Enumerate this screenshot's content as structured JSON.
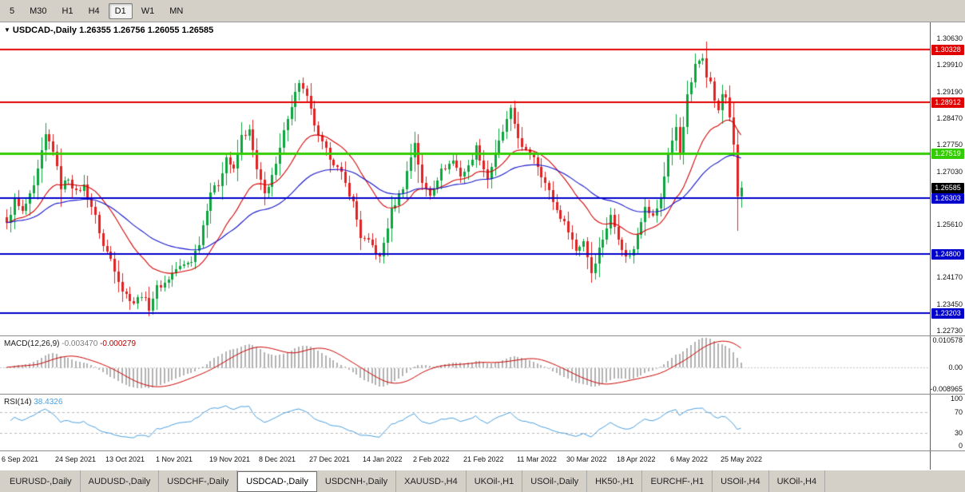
{
  "toolbar": {
    "timeframes": [
      {
        "label": "5",
        "active": false
      },
      {
        "label": "M30",
        "active": false
      },
      {
        "label": "H1",
        "active": false
      },
      {
        "label": "H4",
        "active": false
      },
      {
        "label": "D1",
        "active": true
      },
      {
        "label": "W1",
        "active": false
      },
      {
        "label": "MN",
        "active": false
      }
    ]
  },
  "chart": {
    "symbol": "USDCAD-,Daily",
    "ohlc": "1.26355 1.26756 1.26055 1.26585"
  },
  "chart_data": {
    "type": "candlestick",
    "symbol": "USDCAD",
    "timeframe": "Daily",
    "bars": 192,
    "price_scale": {
      "max": 1.3106,
      "min": 1.226
    },
    "y_ticks": [
      1.3063,
      1.2991,
      1.2919,
      1.2847,
      1.2775,
      1.2703,
      1.2561,
      1.2417,
      1.2345,
      1.2273
    ],
    "price_labels": [
      {
        "value": 1.30328,
        "text": "1.30328",
        "bg": "#e00000"
      },
      {
        "value": 1.28912,
        "text": "1.28912",
        "bg": "#e00000"
      },
      {
        "value": 1.27519,
        "text": "1.27519",
        "bg": "#33cc00"
      },
      {
        "value": 1.26585,
        "text": "1.26585",
        "bg": "#000000"
      },
      {
        "value": 1.26303,
        "text": "1.26303",
        "bg": "#0000cc"
      },
      {
        "value": 1.248,
        "text": "1.24800",
        "bg": "#0000cc"
      },
      {
        "value": 1.23203,
        "text": "1.23203",
        "bg": "#0000cc"
      }
    ],
    "hlines": [
      {
        "price": 1.30328,
        "color": "#e00000",
        "width": 2
      },
      {
        "price": 1.28912,
        "color": "#e00000",
        "width": 2
      },
      {
        "price": 1.27519,
        "color": "#33cc00",
        "width": 3
      },
      {
        "price": 1.26303,
        "color": "#0000cc",
        "width": 2
      },
      {
        "price": 1.248,
        "color": "#0000cc",
        "width": 2
      },
      {
        "price": 1.23203,
        "color": "#0000cc",
        "width": 2
      }
    ],
    "candle_up": "#0da53f",
    "candle_down": "#e02222",
    "ma": [
      {
        "period": 20,
        "color": "#d40000"
      },
      {
        "period": 50,
        "color": "#1414cc"
      }
    ],
    "close_anchors": [
      [
        0,
        1.256
      ],
      [
        2,
        1.2625
      ],
      [
        4,
        1.2592
      ],
      [
        7,
        1.266
      ],
      [
        10,
        1.28
      ],
      [
        12,
        1.2762
      ],
      [
        14,
        1.266
      ],
      [
        16,
        1.2685
      ],
      [
        18,
        1.2645
      ],
      [
        20,
        1.2665
      ],
      [
        23,
        1.258
      ],
      [
        25,
        1.2502
      ],
      [
        27,
        1.2468
      ],
      [
        30,
        1.2382
      ],
      [
        33,
        1.2348
      ],
      [
        35,
        1.2372
      ],
      [
        37,
        1.2334
      ],
      [
        39,
        1.239
      ],
      [
        41,
        1.2402
      ],
      [
        44,
        1.244
      ],
      [
        46,
        1.245
      ],
      [
        48,
        1.2464
      ],
      [
        50,
        1.2512
      ],
      [
        53,
        1.265
      ],
      [
        55,
        1.2668
      ],
      [
        57,
        1.2742
      ],
      [
        59,
        1.2706
      ],
      [
        61,
        1.2798
      ],
      [
        63,
        1.2812
      ],
      [
        65,
        1.2706
      ],
      [
        67,
        1.2642
      ],
      [
        70,
        1.2718
      ],
      [
        73,
        1.2852
      ],
      [
        76,
        1.2945
      ],
      [
        78,
        1.2902
      ],
      [
        81,
        1.2795
      ],
      [
        84,
        1.2742
      ],
      [
        87,
        1.2695
      ],
      [
        90,
        1.2618
      ],
      [
        92,
        1.2528
      ],
      [
        95,
        1.2502
      ],
      [
        97,
        1.2468
      ],
      [
        100,
        1.2596
      ],
      [
        103,
        1.2662
      ],
      [
        106,
        1.2782
      ],
      [
        108,
        1.2668
      ],
      [
        110,
        1.264
      ],
      [
        113,
        1.2706
      ],
      [
        116,
        1.2732
      ],
      [
        118,
        1.2694
      ],
      [
        120,
        1.2716
      ],
      [
        122,
        1.2768
      ],
      [
        125,
        1.2684
      ],
      [
        128,
        1.2782
      ],
      [
        131,
        1.2868
      ],
      [
        134,
        1.2764
      ],
      [
        137,
        1.2744
      ],
      [
        140,
        1.2672
      ],
      [
        143,
        1.2598
      ],
      [
        146,
        1.2546
      ],
      [
        148,
        1.249
      ],
      [
        150,
        1.2516
      ],
      [
        152,
        1.243
      ],
      [
        154,
        1.2494
      ],
      [
        157,
        1.2582
      ],
      [
        159,
        1.2526
      ],
      [
        161,
        1.247
      ],
      [
        163,
        1.2492
      ],
      [
        166,
        1.2614
      ],
      [
        168,
        1.258
      ],
      [
        170,
        1.263
      ],
      [
        172,
        1.2752
      ],
      [
        174,
        1.282
      ],
      [
        175,
        1.2754
      ],
      [
        177,
        1.2906
      ],
      [
        179,
        1.2988
      ],
      [
        181,
        1.3016
      ],
      [
        182,
        1.2966
      ],
      [
        183,
        1.2942
      ],
      [
        184,
        1.2896
      ],
      [
        185,
        1.2864
      ],
      [
        186,
        1.2912
      ],
      [
        187,
        1.2904
      ],
      [
        188,
        1.2852
      ],
      [
        189,
        1.277
      ],
      [
        190,
        1.26355
      ],
      [
        191,
        1.26585
      ]
    ],
    "last_candle": {
      "o": 1.26355,
      "h": 1.26756,
      "l": 1.26055,
      "c": 1.26585
    },
    "x_labels": [
      {
        "bar": 0,
        "text": "6 Sep 2021"
      },
      {
        "bar": 14,
        "text": "24 Sep 2021"
      },
      {
        "bar": 27,
        "text": "13 Oct 2021"
      },
      {
        "bar": 40,
        "text": "1 Nov 2021"
      },
      {
        "bar": 54,
        "text": "19 Nov 2021"
      },
      {
        "bar": 67,
        "text": "8 Dec 2021"
      },
      {
        "bar": 80,
        "text": "27 Dec 2021"
      },
      {
        "bar": 94,
        "text": "14 Jan 2022"
      },
      {
        "bar": 107,
        "text": "2 Feb 2022"
      },
      {
        "bar": 120,
        "text": "21 Feb 2022"
      },
      {
        "bar": 134,
        "text": "11 Mar 2022"
      },
      {
        "bar": 147,
        "text": "30 Mar 2022"
      },
      {
        "bar": 160,
        "text": "18 Apr 2022"
      },
      {
        "bar": 174,
        "text": "6 May 2022"
      },
      {
        "bar": 187,
        "text": "25 May 2022"
      }
    ],
    "macd": {
      "label": "MACD(12,26,9)",
      "value_main": "-0.003470",
      "value_signal": "-0.000279",
      "fast": 12,
      "slow": 26,
      "signal": 9,
      "scale_max": 0.0112,
      "scale_min": -0.0096,
      "axis": [
        {
          "v": 0.010578,
          "text": "0.010578"
        },
        {
          "v": 0,
          "text": "0.00"
        },
        {
          "v": -0.008965,
          "text": "-0.008965"
        }
      ],
      "hist_color": "#b3b3b3",
      "signal_color": "#cc0000"
    },
    "rsi": {
      "label": "RSI(14)",
      "value": "38.4326",
      "period": 14,
      "levels": [
        70,
        30
      ],
      "axis": [
        {
          "v": 100,
          "text": "100"
        },
        {
          "v": 70,
          "text": "70"
        },
        {
          "v": 30,
          "text": "30"
        },
        {
          "v": 0,
          "text": "0"
        }
      ],
      "color": "#4a9ede",
      "level_color": "#b8b8b8"
    }
  },
  "tabs": [
    {
      "label": "EURUSD-,Daily",
      "active": false
    },
    {
      "label": "AUDUSD-,Daily",
      "active": false
    },
    {
      "label": "USDCHF-,Daily",
      "active": false
    },
    {
      "label": "USDCAD-,Daily",
      "active": true
    },
    {
      "label": "USDCNH-,Daily",
      "active": false
    },
    {
      "label": "XAUUSD-,H4",
      "active": false
    },
    {
      "label": "UKOil-,H1",
      "active": false
    },
    {
      "label": "USOil-,Daily",
      "active": false
    },
    {
      "label": "HK50-,H1",
      "active": false
    },
    {
      "label": "EURCHF-,H1",
      "active": false
    },
    {
      "label": "USOil-,H4",
      "active": false
    },
    {
      "label": "UKOil-,H4",
      "active": false
    }
  ]
}
